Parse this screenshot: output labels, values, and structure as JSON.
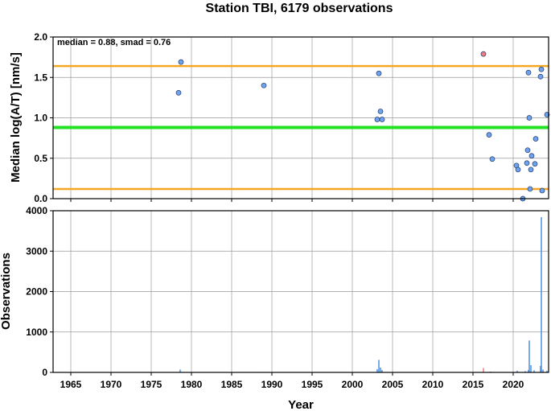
{
  "chart_data": {
    "title": "Station TBI, 6179 observations",
    "xlabel": "Year",
    "x_ticks": [
      1965,
      1970,
      1975,
      1980,
      1985,
      1990,
      1995,
      2000,
      2005,
      2010,
      2015,
      2020
    ],
    "xlim": [
      1962.8,
      2024.4
    ],
    "grid": true,
    "panels": [
      {
        "type": "scatter",
        "ylabel": "Median log(A/T) [nm/s]",
        "ylim": [
          0,
          2.0
        ],
        "y_ticks": [
          "0.0",
          "0.5",
          "1.0",
          "1.5",
          "2.0"
        ],
        "annotation": "median = 0.88, smad = 0.76",
        "reference_lines": [
          {
            "y": 1.64,
            "color": "#f5a623",
            "role": "upper"
          },
          {
            "y": 0.88,
            "color": "#22e022",
            "role": "median"
          },
          {
            "y": 0.12,
            "color": "#f5a623",
            "role": "lower"
          }
        ],
        "points": [
          {
            "x": 1978.4,
            "y": 1.31,
            "color": "#6fa3ef"
          },
          {
            "x": 1978.7,
            "y": 1.69,
            "color": "#6fa3ef"
          },
          {
            "x": 1989.0,
            "y": 1.4,
            "color": "#6fa3ef"
          },
          {
            "x": 2003.1,
            "y": 0.98,
            "color": "#6fa3ef"
          },
          {
            "x": 2003.3,
            "y": 1.55,
            "color": "#6fa3ef"
          },
          {
            "x": 2003.5,
            "y": 1.08,
            "color": "#6fa3ef"
          },
          {
            "x": 2003.7,
            "y": 0.98,
            "color": "#6fa3ef"
          },
          {
            "x": 2016.3,
            "y": 1.79,
            "color": "#f47c7c"
          },
          {
            "x": 2017.0,
            "y": 0.79,
            "color": "#6fa3ef"
          },
          {
            "x": 2017.4,
            "y": 0.49,
            "color": "#6fa3ef"
          },
          {
            "x": 2020.4,
            "y": 0.41,
            "color": "#6fa3ef"
          },
          {
            "x": 2020.6,
            "y": 0.36,
            "color": "#6fa3ef"
          },
          {
            "x": 2021.2,
            "y": 0.0,
            "color": "#6fa3ef"
          },
          {
            "x": 2021.7,
            "y": 0.44,
            "color": "#6fa3ef"
          },
          {
            "x": 2021.8,
            "y": 0.6,
            "color": "#6fa3ef"
          },
          {
            "x": 2021.9,
            "y": 1.56,
            "color": "#6fa3ef"
          },
          {
            "x": 2022.0,
            "y": 1.0,
            "color": "#6fa3ef"
          },
          {
            "x": 2022.1,
            "y": 0.12,
            "color": "#6fa3ef"
          },
          {
            "x": 2022.2,
            "y": 0.36,
            "color": "#6fa3ef"
          },
          {
            "x": 2022.3,
            "y": 0.53,
            "color": "#6fa3ef"
          },
          {
            "x": 2022.7,
            "y": 0.43,
            "color": "#6fa3ef"
          },
          {
            "x": 2022.8,
            "y": 0.74,
            "color": "#6fa3ef"
          },
          {
            "x": 2023.4,
            "y": 1.51,
            "color": "#6fa3ef"
          },
          {
            "x": 2023.5,
            "y": 1.6,
            "color": "#6fa3ef"
          },
          {
            "x": 2023.6,
            "y": 0.1,
            "color": "#6fa3ef"
          },
          {
            "x": 2024.2,
            "y": 1.04,
            "color": "#6fa3ef"
          }
        ]
      },
      {
        "type": "bar",
        "ylabel": "Observations",
        "ylim": [
          0,
          4000
        ],
        "y_ticks": [
          "0",
          "1000",
          "2000",
          "3000",
          "4000"
        ],
        "bars": [
          {
            "x": 1978.6,
            "y": 70,
            "color": "#4a90e2"
          },
          {
            "x": 1989.0,
            "y": 12,
            "color": "#4a90e2"
          },
          {
            "x": 2003.1,
            "y": 80,
            "color": "#4a90e2"
          },
          {
            "x": 2003.3,
            "y": 310,
            "color": "#4a90e2"
          },
          {
            "x": 2003.5,
            "y": 120,
            "color": "#4a90e2"
          },
          {
            "x": 2003.7,
            "y": 60,
            "color": "#4a90e2"
          },
          {
            "x": 2016.3,
            "y": 110,
            "color": "#f47c7c"
          },
          {
            "x": 2017.2,
            "y": 20,
            "color": "#4a90e2"
          },
          {
            "x": 2020.5,
            "y": 40,
            "color": "#4a90e2"
          },
          {
            "x": 2021.5,
            "y": 30,
            "color": "#4a90e2"
          },
          {
            "x": 2021.9,
            "y": 60,
            "color": "#4a90e2"
          },
          {
            "x": 2022.0,
            "y": 790,
            "color": "#4a90e2"
          },
          {
            "x": 2022.2,
            "y": 180,
            "color": "#4a90e2"
          },
          {
            "x": 2022.6,
            "y": 50,
            "color": "#4a90e2"
          },
          {
            "x": 2023.4,
            "y": 160,
            "color": "#4a90e2"
          },
          {
            "x": 2023.5,
            "y": 3840,
            "color": "#4a90e2"
          },
          {
            "x": 2023.7,
            "y": 70,
            "color": "#4a90e2"
          },
          {
            "x": 2024.2,
            "y": 40,
            "color": "#4a90e2"
          }
        ]
      }
    ]
  }
}
